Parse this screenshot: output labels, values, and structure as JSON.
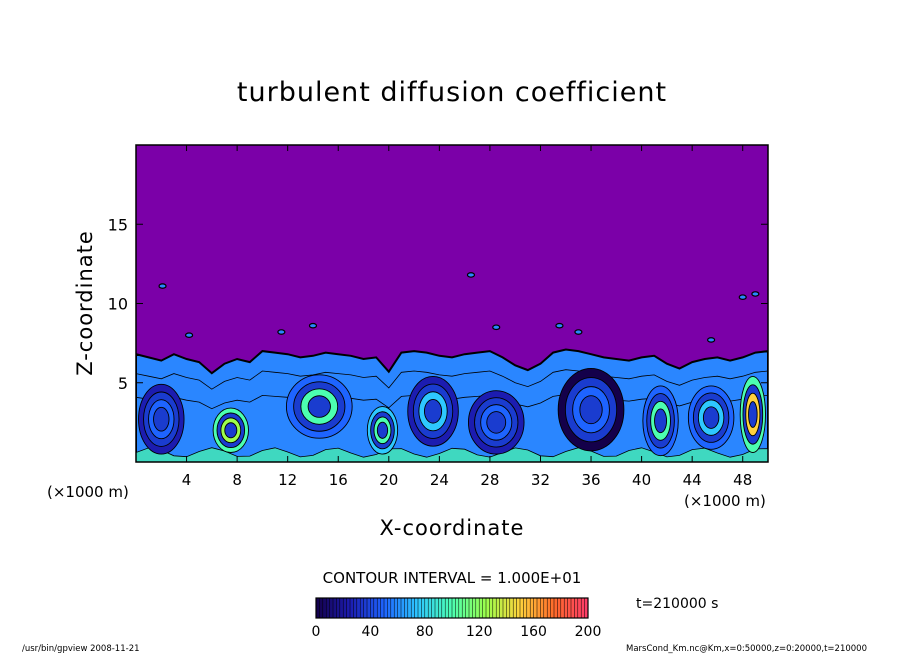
{
  "chart_data": {
    "type": "heatmap",
    "title": "turbulent diffusion coefficient",
    "xlabel": "X-coordinate",
    "ylabel": "Z-coordinate",
    "x_unit_left": "(×1000 m)",
    "x_unit_right": "(×1000 m)",
    "xlim": [
      0,
      50
    ],
    "ylim": [
      0,
      20
    ],
    "x_ticks": [
      4,
      8,
      12,
      16,
      20,
      24,
      28,
      32,
      36,
      40,
      44,
      48
    ],
    "y_ticks": [
      5,
      10,
      15
    ],
    "background_color": "#7b00a8",
    "contour_interval_label": "CONTOUR INTERVAL = 1.000E+01",
    "time_label": "t=210000 s",
    "colorbar": {
      "min": 0,
      "max": 200,
      "ticks": [
        0,
        40,
        80,
        120,
        160,
        200
      ],
      "colors": [
        "#14004a",
        "#1c1cb0",
        "#1e64ff",
        "#2ec8ff",
        "#4cffb0",
        "#9cff4c",
        "#ffd23c",
        "#ff6a2a",
        "#ff3a6a"
      ]
    },
    "turbulent_layer": {
      "boundary_x": [
        0,
        1,
        2,
        3,
        4,
        5,
        6,
        7,
        8,
        9,
        10,
        11,
        12,
        13,
        14,
        15,
        16,
        17,
        18,
        19,
        20,
        21,
        22,
        23,
        24,
        25,
        26,
        27,
        28,
        29,
        30,
        31,
        32,
        33,
        34,
        35,
        36,
        37,
        38,
        39,
        40,
        41,
        42,
        43,
        44,
        45,
        46,
        47,
        48,
        49,
        50
      ],
      "boundary_z": [
        6.8,
        6.6,
        6.4,
        6.8,
        6.5,
        6.3,
        5.6,
        6.2,
        6.5,
        6.3,
        7.0,
        6.9,
        6.8,
        6.6,
        6.7,
        6.9,
        6.8,
        6.7,
        6.5,
        6.6,
        5.7,
        6.9,
        7.0,
        6.9,
        6.7,
        6.6,
        6.8,
        6.9,
        7.0,
        6.6,
        6.1,
        5.8,
        6.2,
        6.9,
        7.1,
        7.0,
        6.8,
        6.6,
        6.5,
        6.4,
        6.6,
        6.7,
        6.2,
        5.9,
        6.3,
        6.5,
        6.6,
        6.4,
        6.6,
        6.9,
        7.0
      ],
      "vortices": [
        {
          "x": 2.0,
          "z": 2.7,
          "rx": 1.8,
          "rz": 2.2,
          "level": 20
        },
        {
          "x": 7.5,
          "z": 2.0,
          "rx": 1.4,
          "rz": 1.4,
          "level": 90
        },
        {
          "x": 14.5,
          "z": 3.5,
          "rx": 2.6,
          "rz": 2.0,
          "level": 50
        },
        {
          "x": 19.5,
          "z": 2.0,
          "rx": 1.2,
          "rz": 1.5,
          "level": 70
        },
        {
          "x": 23.5,
          "z": 3.2,
          "rx": 2.0,
          "rz": 2.2,
          "level": 30
        },
        {
          "x": 28.5,
          "z": 2.5,
          "rx": 2.2,
          "rz": 2.0,
          "level": 20
        },
        {
          "x": 36.0,
          "z": 3.3,
          "rx": 2.6,
          "rz": 2.6,
          "level": 10
        },
        {
          "x": 41.5,
          "z": 2.6,
          "rx": 1.4,
          "rz": 2.2,
          "level": 60
        },
        {
          "x": 45.5,
          "z": 2.8,
          "rx": 1.8,
          "rz": 2.0,
          "level": 40
        },
        {
          "x": 48.8,
          "z": 3.0,
          "rx": 1.0,
          "rz": 2.4,
          "level": 100
        }
      ]
    }
  },
  "footer": {
    "left": "/usr/bin/gpview  2008-11-21",
    "right": "MarsCond_Km.nc@Km,x=0:50000,z=0:20000,t=210000"
  }
}
